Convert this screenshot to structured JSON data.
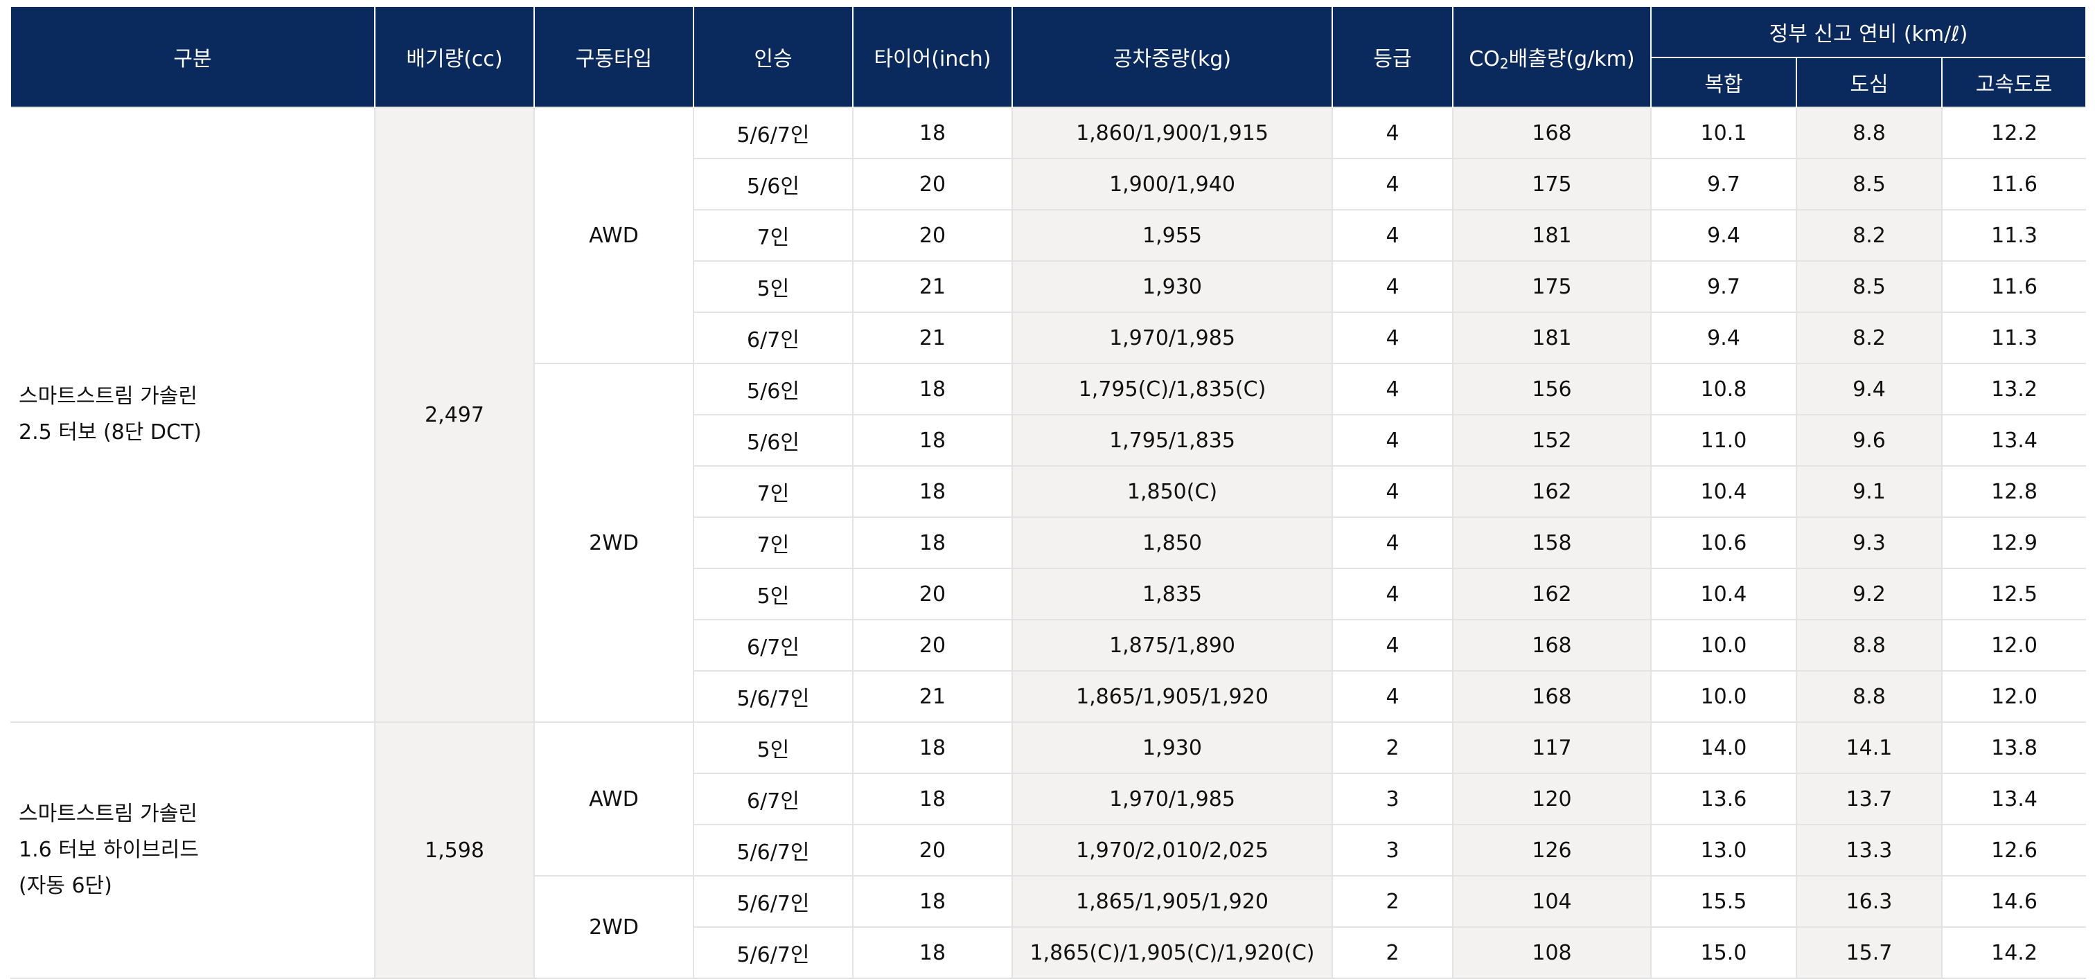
{
  "table": {
    "headers": {
      "category": "구분",
      "displacement": "배기량(cc)",
      "drive": "구동타입",
      "seats": "인승",
      "tire": "타이어(inch)",
      "weight": "공차중량(kg)",
      "grade": "등급",
      "co2_prefix": "CO",
      "co2_sub": "2",
      "co2_suffix": "배출량(g/km)",
      "fuel_group": "정부 신고 연비 (km/ℓ)",
      "combined": "복합",
      "city": "도심",
      "highway": "고속도로"
    },
    "colors": {
      "header_bg": "#0a2a5e",
      "header_text": "#ffffff",
      "shade": "#f3f2f0",
      "border": "#e3e3e3"
    },
    "groups": [
      {
        "category_lines": [
          "스마트스트림 가솔린",
          "2.5 터보 (8단 DCT)"
        ],
        "displacement": "2,497",
        "drives": [
          {
            "name": "AWD",
            "rows": [
              {
                "seats": "5/6/7인",
                "tire": "18",
                "weight": "1,860/1,900/1,915",
                "grade": "4",
                "co2": "168",
                "combined": "10.1",
                "city": "8.8",
                "highway": "12.2"
              },
              {
                "seats": "5/6인",
                "tire": "20",
                "weight": "1,900/1,940",
                "grade": "4",
                "co2": "175",
                "combined": "9.7",
                "city": "8.5",
                "highway": "11.6"
              },
              {
                "seats": "7인",
                "tire": "20",
                "weight": "1,955",
                "grade": "4",
                "co2": "181",
                "combined": "9.4",
                "city": "8.2",
                "highway": "11.3"
              },
              {
                "seats": "5인",
                "tire": "21",
                "weight": "1,930",
                "grade": "4",
                "co2": "175",
                "combined": "9.7",
                "city": "8.5",
                "highway": "11.6"
              },
              {
                "seats": "6/7인",
                "tire": "21",
                "weight": "1,970/1,985",
                "grade": "4",
                "co2": "181",
                "combined": "9.4",
                "city": "8.2",
                "highway": "11.3"
              }
            ]
          },
          {
            "name": "2WD",
            "rows": [
              {
                "seats": "5/6인",
                "tire": "18",
                "weight": "1,795(C)/1,835(C)",
                "grade": "4",
                "co2": "156",
                "combined": "10.8",
                "city": "9.4",
                "highway": "13.2"
              },
              {
                "seats": "5/6인",
                "tire": "18",
                "weight": "1,795/1,835",
                "grade": "4",
                "co2": "152",
                "combined": "11.0",
                "city": "9.6",
                "highway": "13.4"
              },
              {
                "seats": "7인",
                "tire": "18",
                "weight": "1,850(C)",
                "grade": "4",
                "co2": "162",
                "combined": "10.4",
                "city": "9.1",
                "highway": "12.8"
              },
              {
                "seats": "7인",
                "tire": "18",
                "weight": "1,850",
                "grade": "4",
                "co2": "158",
                "combined": "10.6",
                "city": "9.3",
                "highway": "12.9"
              },
              {
                "seats": "5인",
                "tire": "20",
                "weight": "1,835",
                "grade": "4",
                "co2": "162",
                "combined": "10.4",
                "city": "9.2",
                "highway": "12.5"
              },
              {
                "seats": "6/7인",
                "tire": "20",
                "weight": "1,875/1,890",
                "grade": "4",
                "co2": "168",
                "combined": "10.0",
                "city": "8.8",
                "highway": "12.0"
              },
              {
                "seats": "5/6/7인",
                "tire": "21",
                "weight": "1,865/1,905/1,920",
                "grade": "4",
                "co2": "168",
                "combined": "10.0",
                "city": "8.8",
                "highway": "12.0"
              }
            ]
          }
        ]
      },
      {
        "category_lines": [
          "스마트스트림 가솔린",
          "1.6 터보 하이브리드",
          "(자동 6단)"
        ],
        "displacement": "1,598",
        "drives": [
          {
            "name": "AWD",
            "rows": [
              {
                "seats": "5인",
                "tire": "18",
                "weight": "1,930",
                "grade": "2",
                "co2": "117",
                "combined": "14.0",
                "city": "14.1",
                "highway": "13.8"
              },
              {
                "seats": "6/7인",
                "tire": "18",
                "weight": "1,970/1,985",
                "grade": "3",
                "co2": "120",
                "combined": "13.6",
                "city": "13.7",
                "highway": "13.4"
              },
              {
                "seats": "5/6/7인",
                "tire": "20",
                "weight": "1,970/2,010/2,025",
                "grade": "3",
                "co2": "126",
                "combined": "13.0",
                "city": "13.3",
                "highway": "12.6"
              }
            ]
          },
          {
            "name": "2WD",
            "rows": [
              {
                "seats": "5/6/7인",
                "tire": "18",
                "weight": "1,865/1,905/1,920",
                "grade": "2",
                "co2": "104",
                "combined": "15.5",
                "city": "16.3",
                "highway": "14.6"
              },
              {
                "seats": "5/6/7인",
                "tire": "18",
                "weight": "1,865(C)/1,905(C)/1,920(C)",
                "grade": "2",
                "co2": "108",
                "combined": "15.0",
                "city": "15.7",
                "highway": "14.2"
              }
            ]
          }
        ]
      }
    ]
  }
}
